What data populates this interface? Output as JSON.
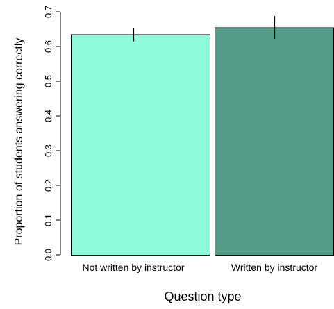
{
  "chart_data": {
    "type": "bar",
    "title": "",
    "xlabel": "Question type",
    "ylabel": "Proportion of students answering correctly",
    "categories": [
      "Not written by instructor",
      "Written by instructor"
    ],
    "values": [
      0.635,
      0.655
    ],
    "error_low": [
      0.615,
      0.622
    ],
    "error_high": [
      0.654,
      0.688
    ],
    "ylim": [
      0,
      0.7
    ],
    "yticks": [
      "0.0",
      "0.1",
      "0.2",
      "0.3",
      "0.4",
      "0.5",
      "0.6",
      "0.7"
    ],
    "colors": [
      "#90fadc",
      "#559c88"
    ],
    "grid": false,
    "legend": "none"
  }
}
